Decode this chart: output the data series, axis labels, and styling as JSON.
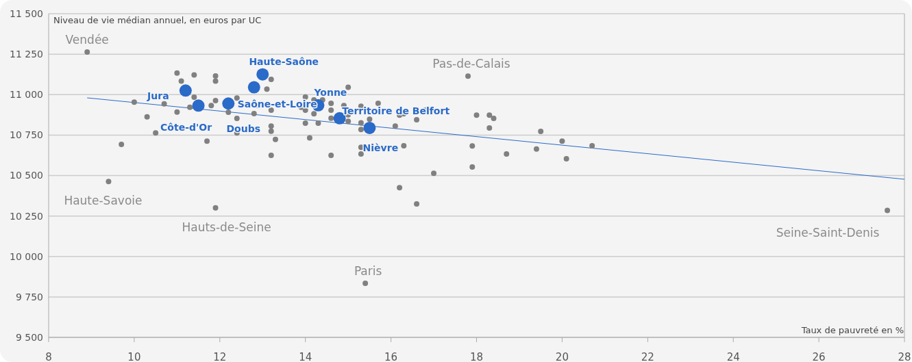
{
  "chart_data": {
    "type": "scatter",
    "xlabel": "Taux de pauvreté en %",
    "ylabel": "Niveau de vie médian annuel, en euros par UC",
    "xlim": [
      8,
      28
    ],
    "xticks": [
      8,
      10,
      12,
      14,
      16,
      18,
      20,
      22,
      24,
      26,
      28
    ],
    "ylim": [
      9500,
      11500
    ],
    "yticks": [
      {
        "value": 9500,
        "label": "9 500"
      },
      {
        "value": 9750,
        "label": "9 750"
      },
      {
        "value": 10000,
        "label": "10 000"
      },
      {
        "value": 10250,
        "label": "10 250"
      },
      {
        "value": 10500,
        "label": "10 500"
      },
      {
        "value": 10750,
        "label": "10 750"
      },
      {
        "value": 11000,
        "label": "11 000"
      },
      {
        "value": 11250,
        "label": "11 250"
      },
      {
        "value": 11500,
        "label": "11 500"
      }
    ],
    "grid": "y",
    "marker": "circle",
    "series": [
      {
        "type": "line",
        "marker": "none",
        "color": "#2a6ac8",
        "x": [
          8.9,
          28
        ],
        "values": [
          10980,
          10477
        ]
      },
      {
        "color": "#808080",
        "x": [
          8.9,
          9.4,
          9.7,
          10.0,
          10.3,
          10.5,
          10.7,
          11.0,
          11.0,
          11.1,
          11.3,
          11.4,
          11.4,
          11.7,
          11.8,
          11.9,
          11.9,
          11.9,
          11.9,
          12.2,
          12.4,
          12.4,
          12.4,
          12.9,
          12.8,
          13.1,
          13.2,
          13.2,
          13.2,
          13.2,
          13.3,
          13.2,
          13.9,
          14.0,
          14.0,
          14.2,
          14.2,
          14.0,
          14.3,
          14.1,
          14.4,
          14.6,
          14.6,
          14.6,
          14.6,
          15.0,
          14.9,
          15.0,
          15.0,
          15.3,
          15.3,
          15.3,
          15.5,
          15.3,
          15.3,
          15.4,
          15.7,
          16.1,
          16.2,
          16.3,
          16.6,
          16.3,
          16.8,
          16.2,
          16.6,
          17.0,
          17.8,
          17.9,
          17.9,
          18.0,
          18.3,
          18.4,
          18.3,
          18.7,
          19.4,
          19.5,
          20.0,
          20.1,
          20.7,
          27.6
        ],
        "values": [
          11263,
          10463,
          10692,
          10953,
          10863,
          10763,
          10943,
          11133,
          10892,
          11083,
          10922,
          11122,
          10984,
          10712,
          10932,
          11115,
          11083,
          10963,
          10300,
          10891,
          10979,
          10853,
          10763,
          10932,
          10883,
          11034,
          11094,
          10904,
          10805,
          10774,
          10723,
          10625,
          10922,
          10985,
          10904,
          10967,
          10882,
          10823,
          10823,
          10733,
          10967,
          10946,
          10904,
          10854,
          10625,
          11045,
          10932,
          10875,
          10835,
          10928,
          10826,
          10784,
          10848,
          10674,
          10633,
          9834,
          10946,
          10805,
          10873,
          10882,
          10845,
          10684,
          10904,
          10425,
          10325,
          10514,
          11114,
          10683,
          10553,
          10873,
          10873,
          10853,
          10794,
          10633,
          10664,
          10773,
          10713,
          10604,
          10684,
          10284
        ]
      },
      {
        "color": "#2a6ac8",
        "x": [
          11.2,
          11.5,
          12.2,
          12.8,
          13.0,
          14.3,
          14.8,
          15.5
        ],
        "values": [
          11025,
          10932,
          10945,
          11045,
          11125,
          10934,
          10854,
          10794
        ]
      }
    ],
    "annotations": [
      {
        "text": "Vendée",
        "x": 8.9,
        "y": 11263
      },
      {
        "text": "Haute-Savoie",
        "x": 9.4,
        "y": 10463
      },
      {
        "text": "Hauts-de-Seine",
        "x": 11.9,
        "y": 10300
      },
      {
        "text": "Paris",
        "x": 15.4,
        "y": 9834
      },
      {
        "text": "Pas-de-Calais",
        "x": 17.8,
        "y": 11114
      },
      {
        "text": "Seine-Saint-Denis",
        "x": 27.6,
        "y": 10284
      },
      {
        "text": "Jura",
        "x": 11.2,
        "y": 11025
      },
      {
        "text": "Côte-d'Or",
        "x": 11.5,
        "y": 10932
      },
      {
        "text": "Doubs",
        "x": 12.2,
        "y": 10945
      },
      {
        "text": "Saône-et-Loire",
        "x": 12.8,
        "y": 11045
      },
      {
        "text": "Haute-Saône",
        "x": 13.0,
        "y": 11125
      },
      {
        "text": "Yonne",
        "x": 14.3,
        "y": 10934
      },
      {
        "text": "Territoire de Belfort",
        "x": 14.8,
        "y": 10854
      },
      {
        "text": "Nièvre",
        "x": 15.5,
        "y": 10794
      }
    ]
  }
}
